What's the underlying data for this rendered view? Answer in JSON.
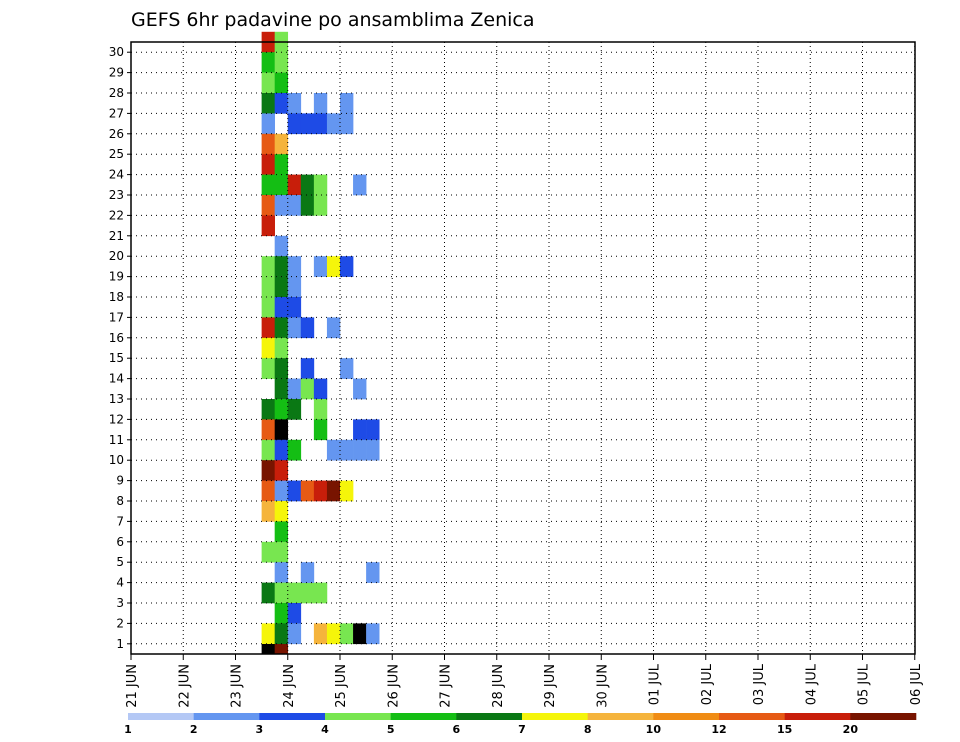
{
  "chart_data": {
    "type": "heatmap",
    "title": "GEFS 6hr padavine po ansamblima Zenica",
    "xlabel": "",
    "ylabel": "",
    "x_tick_labels": [
      "21 JUN",
      "22 JUN",
      "23 JUN",
      "24 JUN",
      "25 JUN",
      "26 JUN",
      "27 JUN",
      "28 JUN",
      "29 JUN",
      "30 JUN",
      "01 JUL",
      "02 JUL",
      "03 JUL",
      "04 JUL",
      "05 JUL",
      "06 JUL"
    ],
    "y_tick_labels": [
      "1",
      "2",
      "3",
      "4",
      "5",
      "6",
      "7",
      "8",
      "9",
      "10",
      "11",
      "12",
      "13",
      "14",
      "15",
      "16",
      "17",
      "18",
      "19",
      "20",
      "21",
      "22",
      "23",
      "24",
      "25",
      "26",
      "27",
      "28",
      "29",
      "30"
    ],
    "ylim": [
      1,
      30
    ],
    "x_unit": "6-hour step (day index from 21 JUN 00Z)",
    "grid": true,
    "colorbar": {
      "labels": [
        "1",
        "2",
        "3",
        "4",
        "5",
        "6",
        "7",
        "8",
        "10",
        "12",
        "15",
        "20"
      ],
      "colors": [
        "#b4c8f5",
        "#6496f0",
        "#1e4be6",
        "#78e650",
        "#14be14",
        "#0a7814",
        "#f5f50a",
        "#f5b43c",
        "#f08c14",
        "#e65a14",
        "#c81e0a",
        "#781400"
      ]
    },
    "cells": [
      [
        0,
        30,
        10
      ],
      [
        0,
        29,
        4
      ],
      [
        0,
        28,
        3
      ],
      [
        0,
        27,
        5
      ],
      [
        0,
        26,
        1
      ],
      [
        0,
        25,
        9
      ],
      [
        0,
        24,
        10
      ],
      [
        0,
        23,
        4
      ],
      [
        0,
        22,
        9
      ],
      [
        0,
        21,
        10
      ],
      [
        0,
        19,
        3
      ],
      [
        0,
        18,
        3
      ],
      [
        0,
        17,
        3
      ],
      [
        0,
        16,
        10
      ],
      [
        0,
        15,
        6
      ],
      [
        0,
        14,
        3
      ],
      [
        0,
        12,
        5
      ],
      [
        0,
        11,
        9
      ],
      [
        0,
        10,
        3
      ],
      [
        0,
        9,
        11
      ],
      [
        0,
        8,
        9
      ],
      [
        0,
        7,
        7
      ],
      [
        0,
        5,
        3
      ],
      [
        0,
        3,
        5
      ],
      [
        0,
        1,
        6
      ],
      [
        0,
        0,
        12
      ],
      [
        1,
        30,
        3
      ],
      [
        1,
        29,
        3
      ],
      [
        1,
        28,
        4
      ],
      [
        1,
        27,
        2
      ],
      [
        1,
        25,
        7
      ],
      [
        1,
        24,
        4
      ],
      [
        1,
        23,
        4
      ],
      [
        1,
        22,
        1
      ],
      [
        1,
        20,
        1
      ],
      [
        1,
        19,
        5
      ],
      [
        1,
        18,
        5
      ],
      [
        1,
        17,
        2
      ],
      [
        1,
        16,
        5
      ],
      [
        1,
        15,
        3
      ],
      [
        1,
        14,
        5
      ],
      [
        1,
        13,
        5
      ],
      [
        1,
        12,
        4
      ],
      [
        1,
        11,
        12
      ],
      [
        1,
        10,
        2
      ],
      [
        1,
        9,
        10
      ],
      [
        1,
        8,
        1
      ],
      [
        1,
        7,
        6
      ],
      [
        1,
        6,
        4
      ],
      [
        1,
        5,
        3
      ],
      [
        1,
        4,
        1
      ],
      [
        1,
        3,
        3
      ],
      [
        1,
        2,
        4
      ],
      [
        1,
        1,
        5
      ],
      [
        1,
        0,
        11
      ],
      [
        2,
        27,
        1
      ],
      [
        2,
        26,
        2
      ],
      [
        2,
        23,
        10
      ],
      [
        2,
        22,
        1
      ],
      [
        2,
        19,
        1
      ],
      [
        2,
        18,
        1
      ],
      [
        2,
        17,
        2
      ],
      [
        2,
        16,
        1
      ],
      [
        2,
        13,
        1
      ],
      [
        2,
        12,
        5
      ],
      [
        2,
        10,
        4
      ],
      [
        2,
        8,
        2
      ],
      [
        2,
        3,
        3
      ],
      [
        2,
        2,
        2
      ],
      [
        2,
        1,
        1
      ],
      [
        3,
        26,
        2
      ],
      [
        3,
        23,
        5
      ],
      [
        3,
        22,
        5
      ],
      [
        3,
        16,
        2
      ],
      [
        3,
        14,
        2
      ],
      [
        3,
        13,
        3
      ],
      [
        3,
        8,
        9
      ],
      [
        3,
        3,
        3
      ],
      [
        3,
        4,
        1
      ],
      [
        4,
        27,
        1
      ],
      [
        4,
        26,
        2
      ],
      [
        4,
        23,
        3
      ],
      [
        4,
        22,
        3
      ],
      [
        4,
        19,
        1
      ],
      [
        4,
        13,
        2
      ],
      [
        4,
        12,
        3
      ],
      [
        4,
        11,
        4
      ],
      [
        4,
        8,
        10
      ],
      [
        4,
        3,
        3
      ],
      [
        4,
        1,
        7
      ],
      [
        5,
        26,
        1
      ],
      [
        5,
        19,
        6
      ],
      [
        5,
        16,
        1
      ],
      [
        5,
        10,
        1
      ],
      [
        5,
        8,
        11
      ],
      [
        5,
        1,
        6
      ],
      [
        6,
        27,
        1
      ],
      [
        6,
        26,
        1
      ],
      [
        6,
        19,
        2
      ],
      [
        6,
        14,
        1
      ],
      [
        6,
        10,
        1
      ],
      [
        6,
        8,
        6
      ],
      [
        6,
        1,
        3
      ],
      [
        7,
        23,
        1
      ],
      [
        7,
        13,
        1
      ],
      [
        7,
        11,
        2
      ],
      [
        7,
        10,
        1
      ],
      [
        7,
        1,
        12
      ],
      [
        8,
        11,
        2
      ],
      [
        8,
        10,
        1
      ],
      [
        8,
        4,
        1
      ],
      [
        8,
        1,
        1
      ]
    ]
  }
}
